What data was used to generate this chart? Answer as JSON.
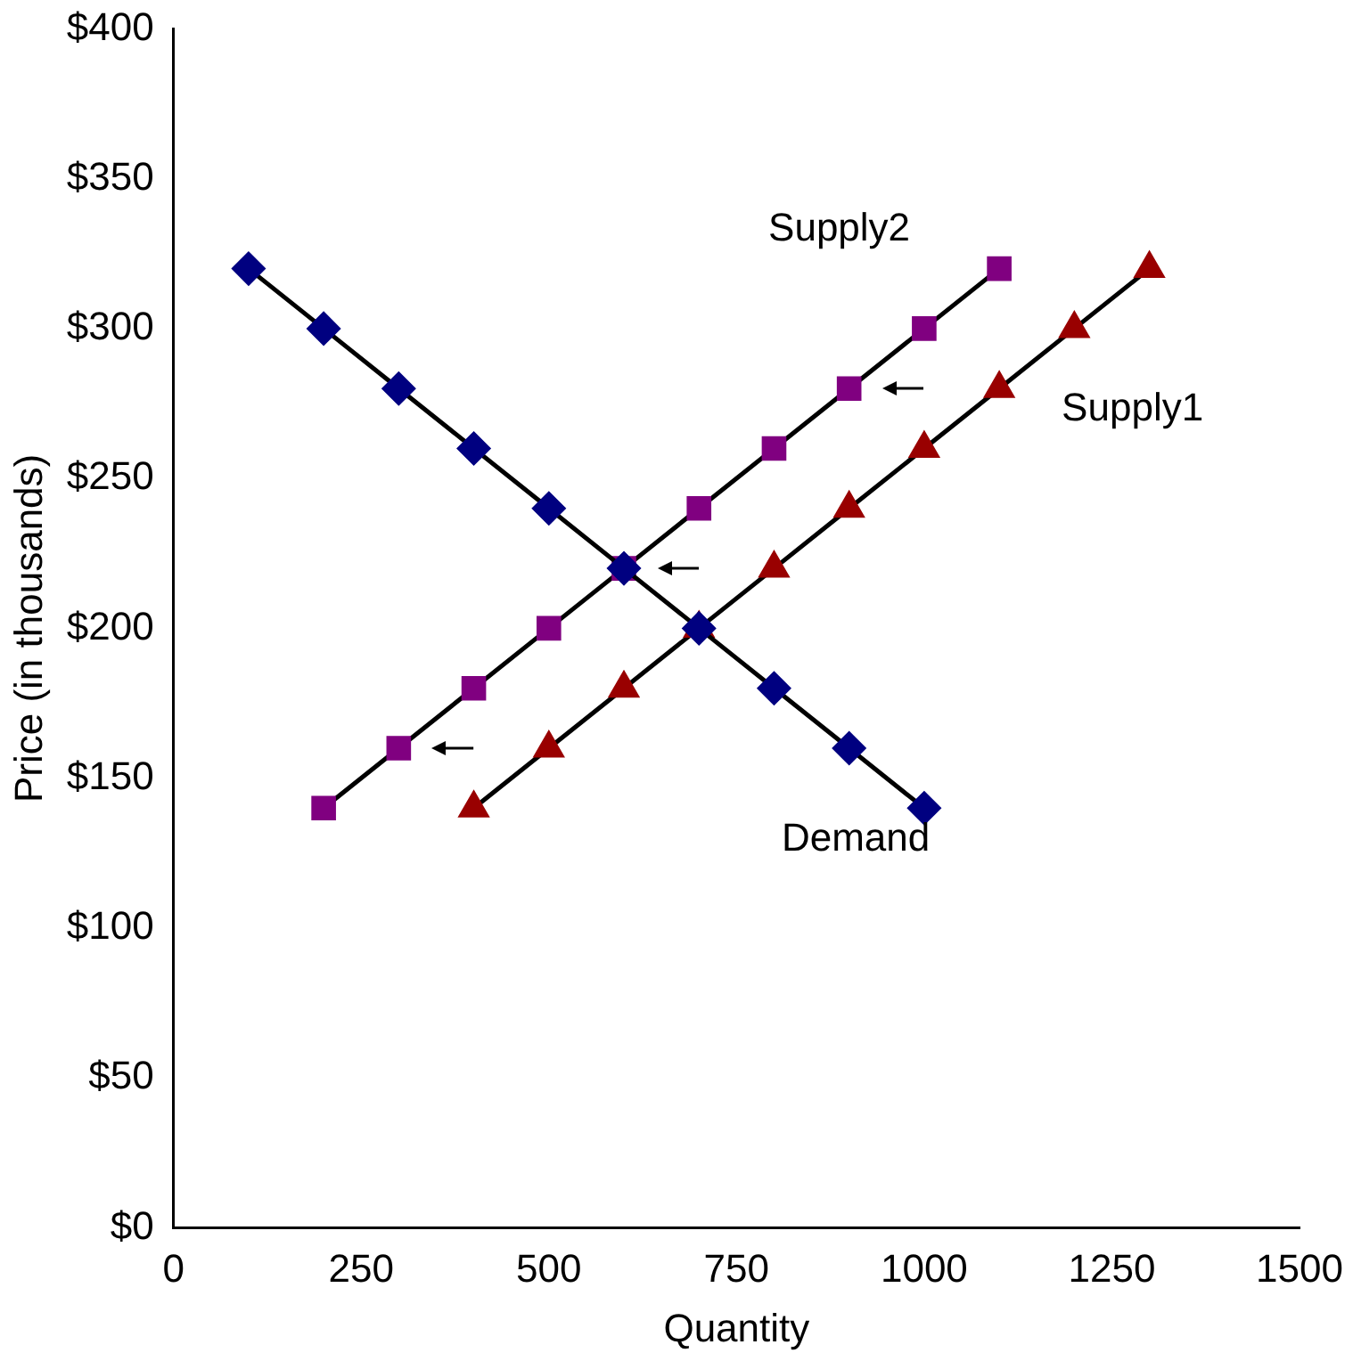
{
  "chart_data": {
    "type": "line",
    "xlabel": "Quantity",
    "ylabel": "Price (in thousands)",
    "legend": false,
    "grid": false,
    "xlim": [
      0,
      1500
    ],
    "xticks": [
      0,
      250,
      500,
      750,
      1000,
      1250,
      1500
    ],
    "ylim": [
      0,
      400
    ],
    "yticks": [
      {
        "value": 0,
        "label": "$0"
      },
      {
        "value": 50,
        "label": "$50"
      },
      {
        "value": 100,
        "label": "$100"
      },
      {
        "value": 150,
        "label": "$150"
      },
      {
        "value": 200,
        "label": "$200"
      },
      {
        "value": 250,
        "label": "$250"
      },
      {
        "value": 300,
        "label": "$300"
      },
      {
        "value": 350,
        "label": "$350"
      },
      {
        "value": 400,
        "label": "$400"
      }
    ],
    "series": [
      {
        "name": "Demand",
        "color": "#000080",
        "marker": "diamond",
        "x": [
          100,
          200,
          300,
          400,
          500,
          600,
          700,
          800,
          900,
          1000
        ],
        "values": [
          320,
          300,
          280,
          260,
          240,
          220,
          200,
          180,
          160,
          140
        ]
      },
      {
        "name": "Supply2",
        "color": "#800080",
        "marker": "square",
        "x": [
          200,
          300,
          400,
          500,
          600,
          700,
          800,
          900,
          1000,
          1100
        ],
        "values": [
          140,
          160,
          180,
          200,
          220,
          240,
          260,
          280,
          300,
          320
        ]
      },
      {
        "name": "Supply1",
        "color": "#990000",
        "marker": "triangle",
        "x": [
          400,
          500,
          600,
          700,
          800,
          900,
          1000,
          1100,
          1200,
          1300
        ],
        "values": [
          140,
          160,
          180,
          200,
          220,
          240,
          260,
          280,
          300,
          320
        ]
      }
    ]
  }
}
